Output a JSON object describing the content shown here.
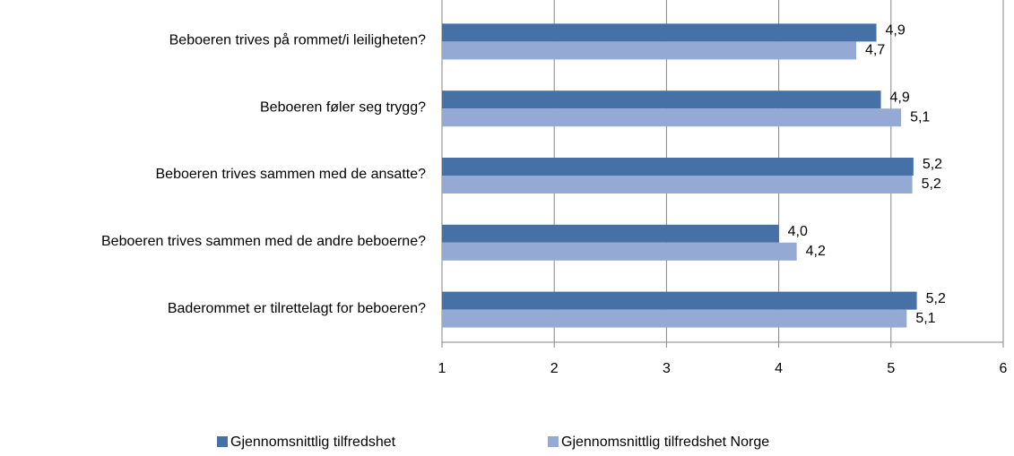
{
  "chart_data": {
    "type": "hbar",
    "categories": [
      "Beboeren trives på rommet/i leiligheten?",
      "Beboeren føler seg trygg?",
      "Beboeren trives sammen med de ansatte?",
      "Beboeren trives sammen med de andre beboerne?",
      "Baderommet er tilrettelagt for beboeren?"
    ],
    "series": [
      {
        "name": "Gjennomsnittlig tilfredshet",
        "color": "#4571a7",
        "values": [
          4.87,
          4.91,
          5.2,
          4.0,
          5.23
        ],
        "value_labels": [
          "4,9",
          "4,9",
          "5,2",
          "4,0",
          "5,2"
        ]
      },
      {
        "name": "Gjennomsnittlig tilfredshet Norge",
        "color": "#94aad5",
        "values": [
          4.69,
          5.09,
          5.19,
          4.16,
          5.14
        ],
        "value_labels": [
          "4,7",
          "5,1",
          "5,2",
          "4,2",
          "5,1"
        ]
      }
    ],
    "xlim": [
      1,
      6
    ],
    "xticks": [
      1,
      2,
      3,
      4,
      5,
      6
    ],
    "grid": true,
    "legend": "bottom"
  }
}
